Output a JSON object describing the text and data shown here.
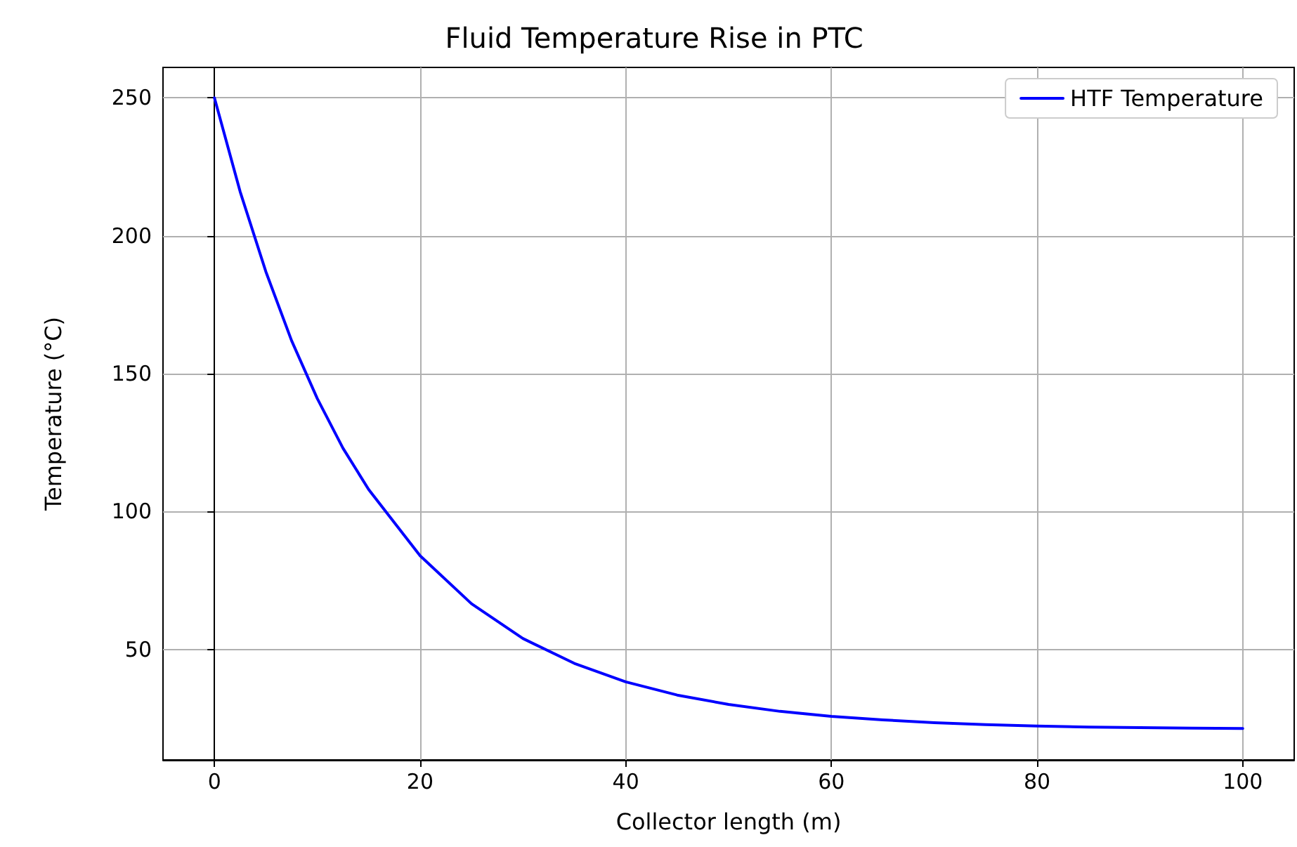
{
  "chart_data": {
    "type": "line",
    "title": "Fluid Temperature Rise in PTC",
    "xlabel": "Collector length (m)",
    "ylabel": "Temperature (°C)",
    "x": [
      0,
      2.5,
      5,
      7.5,
      10,
      12.5,
      15,
      20,
      25,
      30,
      35,
      40,
      45,
      50,
      55,
      60,
      65,
      70,
      75,
      80,
      85,
      90,
      95,
      100
    ],
    "series": [
      {
        "name": "HTF Temperature",
        "color": "#0000ff",
        "values": [
          250,
          216,
          187,
          162,
          141,
          123,
          108,
          84,
          66.6,
          54,
          45,
          38.3,
          33.5,
          30.1,
          27.6,
          25.8,
          24.5,
          23.5,
          22.8,
          22.3,
          21.9,
          21.7,
          21.5,
          21.4
        ]
      }
    ],
    "xlim": [
      -5,
      105
    ],
    "xticks": [
      0,
      20,
      40,
      60,
      80,
      100
    ],
    "ylim": [
      10,
      261
    ],
    "yticks": [
      50,
      100,
      150,
      200,
      250
    ],
    "grid": true,
    "legend": "top right",
    "marker": "none",
    "line_style": "solid"
  }
}
